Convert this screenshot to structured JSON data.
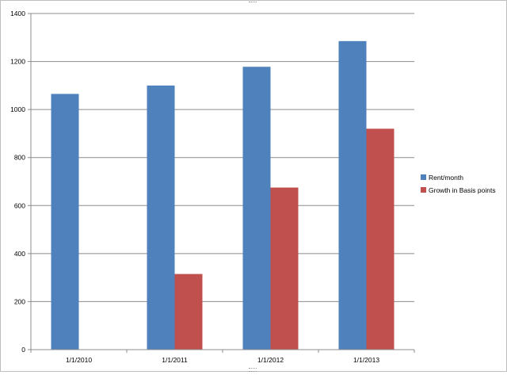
{
  "chart_data": {
    "type": "bar",
    "categories": [
      "1/1/2010",
      "1/1/2011",
      "1/1/2012",
      "1/1/2013"
    ],
    "series": [
      {
        "name": "Rent/month",
        "values": [
          1065,
          1100,
          1178,
          1285
        ]
      },
      {
        "name": "Growth in Basis points",
        "values": [
          null,
          315,
          675,
          920
        ]
      }
    ],
    "colors": [
      "#4f81bd",
      "#c0504d"
    ],
    "ylim": [
      0,
      1400
    ],
    "yticks": [
      0,
      200,
      400,
      600,
      800,
      1000,
      1200,
      1400
    ],
    "grid": true,
    "legend_position": "right"
  }
}
